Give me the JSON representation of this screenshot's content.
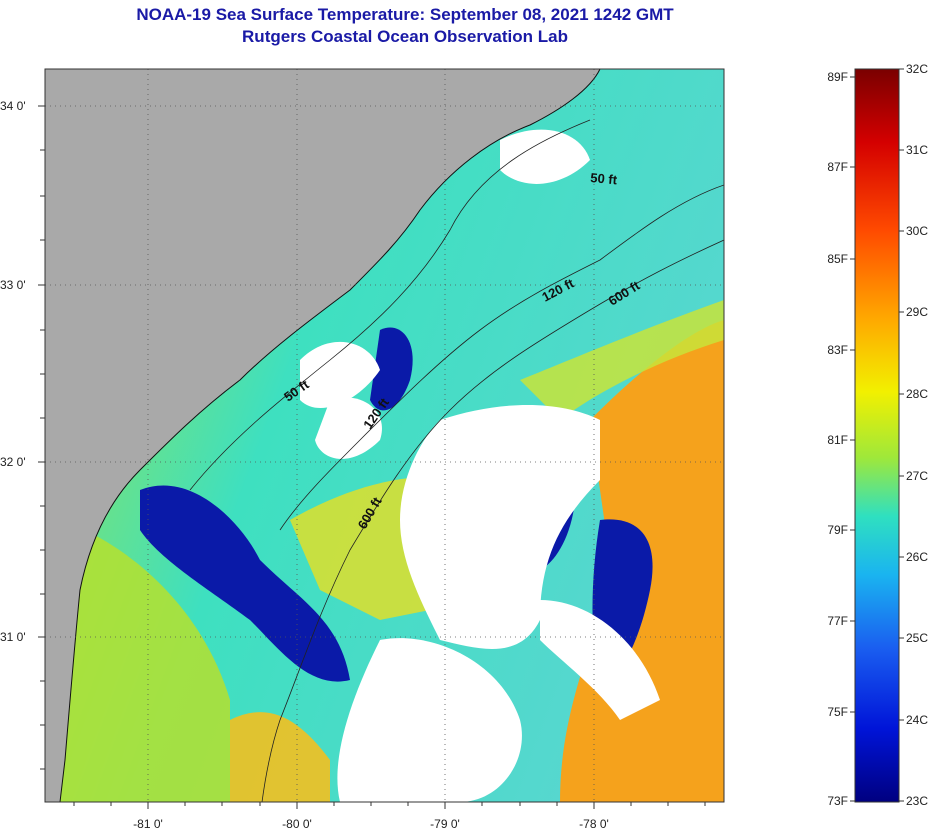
{
  "title": {
    "line1": "NOAA-19 Sea Surface Temperature:  September 08, 2021 1242 GMT",
    "line2": "Rutgers Coastal Ocean Observation Lab"
  },
  "map": {
    "lat_labels": [
      "34 0'",
      "33 0'",
      "32 0'",
      "31 0'"
    ],
    "lon_labels": [
      "-81 0'",
      "-80 0'",
      "-79 0'",
      "-78 0'"
    ],
    "contour_labels": [
      "50 ft",
      "50 ft",
      "120 ft",
      "120 ft",
      "600 ft",
      "600 ft"
    ]
  },
  "colorbar": {
    "fahrenheit": [
      "89F",
      "87F",
      "85F",
      "83F",
      "81F",
      "79F",
      "77F",
      "75F",
      "73F"
    ],
    "celsius": [
      "32C",
      "31C",
      "30C",
      "29C",
      "28C",
      "27C",
      "26C",
      "25C",
      "24C",
      "23C"
    ]
  },
  "colors": {
    "title": "#1a1aa6",
    "land": "#a9a9a9",
    "cloud": "#ffffff",
    "sst_cold": "#00008c",
    "sst_mid": "#33d9c8",
    "sst_warm": "#f49a1e"
  }
}
